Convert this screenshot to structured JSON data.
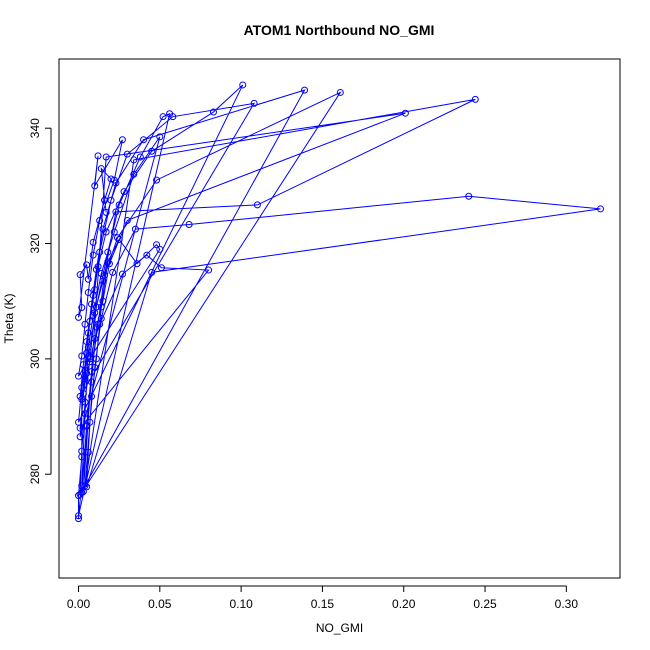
{
  "chart_data": {
    "type": "line",
    "title": "ATOM1 Northbound NO_GMI",
    "xlabel": "NO_GMI",
    "ylabel": "Theta (K)",
    "xlim": [
      -0.012,
      0.333
    ],
    "ylim": [
      262,
      352
    ],
    "xticks": [
      0.0,
      0.05,
      0.1,
      0.15,
      0.2,
      0.25,
      0.3
    ],
    "xtick_labels": [
      "0.00",
      "0.05",
      "0.10",
      "0.15",
      "0.20",
      "0.25",
      "0.30"
    ],
    "yticks": [
      280,
      300,
      320,
      340
    ],
    "ytick_labels": [
      "280",
      "300",
      "320",
      "340"
    ],
    "grid": false,
    "legend": "none",
    "series_color": "#0000ff",
    "series": [
      {
        "points": [
          [
            0.0,
            272.3
          ],
          [
            0.0,
            276.3
          ],
          [
            0.002,
            283.0
          ],
          [
            0.002,
            293.0
          ],
          [
            0.004,
            298.0
          ],
          [
            0.006,
            300.4
          ],
          [
            0.011,
            309.0
          ],
          [
            0.018,
            318.5
          ],
          [
            0.025,
            326.7
          ],
          [
            0.038,
            335.0
          ],
          [
            0.052,
            342.0
          ],
          [
            0.056,
            342.5
          ],
          [
            0.0,
            272.8
          ],
          [
            0.002,
            278.0
          ],
          [
            0.004,
            290.5
          ],
          [
            0.006,
            302.0
          ],
          [
            0.009,
            307.5
          ],
          [
            0.014,
            314.8
          ],
          [
            0.022,
            322.0
          ],
          [
            0.034,
            332.0
          ],
          [
            0.05,
            338.5
          ],
          [
            0.001,
            286.5
          ],
          [
            0.003,
            294.0
          ],
          [
            0.005,
            297.5
          ],
          [
            0.007,
            299.5
          ],
          [
            0.01,
            303.5
          ],
          [
            0.013,
            306.0
          ],
          [
            0.027,
            314.7
          ],
          [
            0.042,
            318.0
          ],
          [
            0.051,
            315.8
          ],
          [
            0.08,
            315.4
          ],
          [
            0.001,
            288.0
          ],
          [
            0.004,
            296.5
          ],
          [
            0.006,
            304.5
          ],
          [
            0.009,
            311.0
          ],
          [
            0.012,
            316.0
          ],
          [
            0.017,
            322.0
          ],
          [
            0.028,
            329.0
          ],
          [
            0.045,
            336.0
          ],
          [
            0.083,
            342.8
          ],
          [
            0.101,
            347.5
          ],
          [
            0.0,
            289.0
          ],
          [
            0.002,
            295.0
          ],
          [
            0.005,
            301.0
          ],
          [
            0.007,
            306.5
          ],
          [
            0.01,
            312.0
          ],
          [
            0.013,
            318.5
          ],
          [
            0.02,
            327.5
          ],
          [
            0.03,
            335.5
          ],
          [
            0.058,
            342.0
          ],
          [
            0.108,
            344.3
          ],
          [
            0.001,
            293.5
          ],
          [
            0.003,
            299.0
          ],
          [
            0.005,
            303.0
          ],
          [
            0.008,
            309.5
          ],
          [
            0.011,
            315.5
          ],
          [
            0.015,
            322.5
          ],
          [
            0.023,
            330.5
          ],
          [
            0.04,
            338.0
          ],
          [
            0.139,
            346.6
          ],
          [
            0.001,
            276.5
          ],
          [
            0.002,
            284.0
          ],
          [
            0.004,
            292.5
          ],
          [
            0.007,
            300.0
          ],
          [
            0.01,
            308.0
          ],
          [
            0.015,
            313.5
          ],
          [
            0.024,
            321.0
          ],
          [
            0.048,
            331.0
          ],
          [
            0.161,
            346.2
          ],
          [
            0.002,
            276.8
          ],
          [
            0.005,
            288.5
          ],
          [
            0.008,
            296.0
          ],
          [
            0.011,
            305.5
          ],
          [
            0.015,
            310.0
          ],
          [
            0.019,
            316.5
          ],
          [
            0.03,
            324.0
          ],
          [
            0.201,
            342.6
          ],
          [
            0.017,
            335.0
          ],
          [
            0.003,
            277.0
          ],
          [
            0.005,
            288.3
          ],
          [
            0.008,
            297.8
          ],
          [
            0.012,
            306.0
          ],
          [
            0.016,
            314.5
          ],
          [
            0.023,
            325.5
          ],
          [
            0.11,
            326.7
          ],
          [
            0.244,
            345.0
          ],
          [
            0.034,
            334.5
          ],
          [
            0.004,
            278.0
          ],
          [
            0.007,
            289.0
          ],
          [
            0.01,
            298.5
          ],
          [
            0.014,
            307.0
          ],
          [
            0.021,
            315.0
          ],
          [
            0.035,
            322.5
          ],
          [
            0.068,
            323.3
          ],
          [
            0.24,
            328.2
          ],
          [
            0.321,
            326.0
          ],
          [
            0.045,
            315.0
          ],
          [
            0.005,
            277.8
          ],
          [
            0.006,
            283.8
          ],
          [
            0.008,
            293.5
          ],
          [
            0.011,
            300.0
          ],
          [
            0.014,
            309.0
          ],
          [
            0.018,
            316.8
          ],
          [
            0.025,
            320.7
          ],
          [
            0.036,
            316.5
          ],
          [
            0.048,
            319.8
          ],
          [
            0.05,
            319.0
          ],
          [
            0.0,
            297.0
          ],
          [
            0.002,
            300.5
          ],
          [
            0.004,
            306.0
          ],
          [
            0.006,
            311.5
          ],
          [
            0.009,
            318.0
          ],
          [
            0.013,
            324.0
          ],
          [
            0.022,
            331.0
          ],
          [
            0.027,
            338.0
          ],
          [
            0.01,
            330.0
          ],
          [
            0.012,
            335.2
          ],
          [
            0.0,
            307.2
          ],
          [
            0.002,
            308.9
          ],
          [
            0.001,
            314.6
          ],
          [
            0.005,
            316.3
          ],
          [
            0.006,
            313.8
          ],
          [
            0.009,
            320.2
          ],
          [
            0.016,
            327.5
          ],
          [
            0.02,
            331.2
          ],
          [
            0.014,
            333.0
          ],
          [
            0.017,
            325.4
          ]
        ]
      }
    ]
  }
}
